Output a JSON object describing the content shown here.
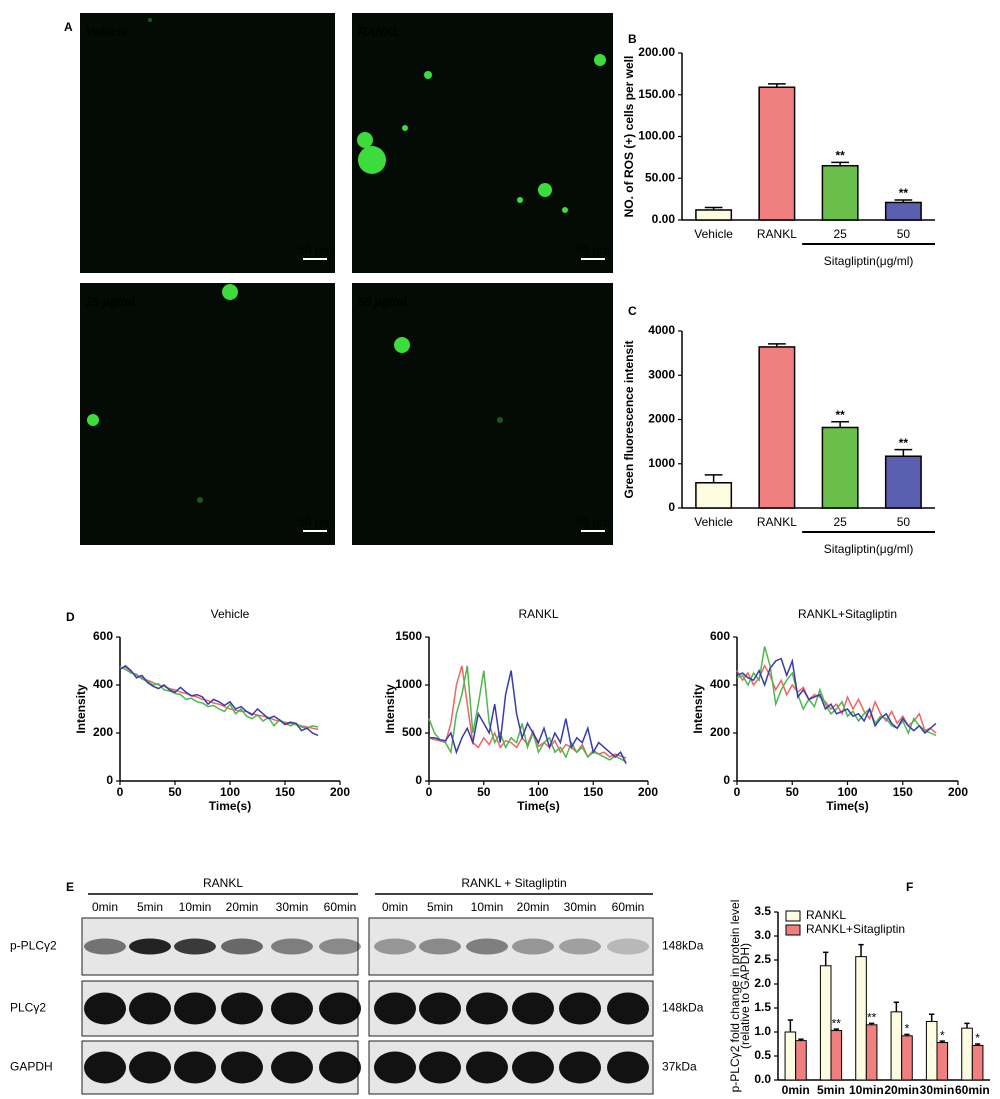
{
  "panel_a": {
    "panel": "A",
    "images": [
      {
        "label": "Vehicle",
        "scale_bar": "50 μm"
      },
      {
        "label": "RANKL",
        "scale_bar": "50 μm"
      },
      {
        "label": "25 μg/ml",
        "scale_bar": "50 μm"
      },
      {
        "label": "50 μg/ml",
        "scale_bar": "50 μm"
      }
    ]
  },
  "panel_e": {
    "panel": "E",
    "groups": [
      {
        "label": "RANKL",
        "times": [
          "0min",
          "5min",
          "10min",
          "20min",
          "30min",
          "60min"
        ]
      },
      {
        "label": "RANKL + Sitagliptin",
        "times": [
          "0min",
          "5min",
          "10min",
          "20min",
          "30min",
          "60min"
        ]
      }
    ],
    "rows": [
      {
        "label": "p-PLCγ2",
        "size": "148kDa"
      },
      {
        "label": "PLCγ2",
        "size": "148kDa"
      },
      {
        "label": "GAPDH",
        "size": "37kDa"
      }
    ]
  },
  "chart_data": [
    {
      "type": "bar",
      "panel": "B",
      "ylabel": "NO. of ROS (+) cells per well",
      "categories": [
        "Vehicle",
        "RANKL",
        "25",
        "50"
      ],
      "values": [
        12,
        159,
        65,
        21
      ],
      "errors": [
        3,
        4,
        4,
        3
      ],
      "significance": [
        null,
        null,
        "**",
        "**"
      ],
      "colors": [
        "#fdfbe0",
        "#f08080",
        "#6abf4b",
        "#5a5fb0"
      ],
      "group_label": "Sitagliptin(μg/ml)",
      "ylim": [
        0,
        200
      ],
      "yticks": [
        {
          "value": 0,
          "label": "0.00"
        },
        {
          "value": 50,
          "label": "50.00"
        },
        {
          "value": 100,
          "label": "100.00"
        },
        {
          "value": 150,
          "label": "150.00"
        },
        {
          "value": 200,
          "label": "200.00"
        }
      ]
    },
    {
      "type": "bar",
      "panel": "C",
      "ylabel": "Green fluorescence intensit",
      "categories": [
        "Vehicle",
        "RANKL",
        "25",
        "50"
      ],
      "values": [
        570,
        3640,
        1820,
        1170
      ],
      "errors": [
        180,
        70,
        130,
        150
      ],
      "significance": [
        null,
        null,
        "**",
        "**"
      ],
      "colors": [
        "#fdfbe0",
        "#f08080",
        "#6abf4b",
        "#5a5fb0"
      ],
      "group_label": "Sitagliptin(μg/ml)",
      "ylim": [
        0,
        4000
      ],
      "yticks": [
        0,
        1000,
        2000,
        3000,
        4000
      ]
    },
    {
      "type": "line",
      "panel": "D",
      "title": "Vehicle",
      "xlabel": "Time(s)",
      "ylabel": "Intensity",
      "x": [
        0,
        5,
        10,
        15,
        20,
        25,
        30,
        35,
        40,
        45,
        50,
        55,
        60,
        65,
        70,
        75,
        80,
        85,
        90,
        95,
        100,
        105,
        110,
        115,
        120,
        125,
        130,
        135,
        140,
        145,
        150,
        155,
        160,
        165,
        170,
        175,
        180
      ],
      "series": [
        {
          "color": "#f06464",
          "values": [
            470,
            475,
            455,
            440,
            430,
            420,
            410,
            400,
            395,
            385,
            380,
            370,
            365,
            355,
            350,
            340,
            335,
            325,
            320,
            310,
            300,
            295,
            290,
            290,
            280,
            275,
            270,
            265,
            255,
            250,
            245,
            240,
            235,
            230,
            225,
            220,
            215
          ]
        },
        {
          "color": "#4cb84c",
          "values": [
            475,
            465,
            450,
            445,
            425,
            415,
            400,
            405,
            380,
            375,
            365,
            360,
            340,
            345,
            330,
            325,
            310,
            315,
            300,
            290,
            320,
            280,
            300,
            270,
            260,
            275,
            250,
            265,
            230,
            255,
            240,
            230,
            240,
            225,
            220,
            230,
            225
          ]
        },
        {
          "color": "#3a3ab0",
          "values": [
            465,
            480,
            460,
            430,
            440,
            410,
            395,
            385,
            400,
            380,
            370,
            390,
            370,
            355,
            360,
            350,
            320,
            340,
            330,
            315,
            330,
            300,
            310,
            290,
            275,
            300,
            280,
            260,
            270,
            255,
            235,
            245,
            240,
            210,
            220,
            200,
            190
          ]
        }
      ],
      "xlim": [
        0,
        200
      ],
      "xticks": [
        0,
        50,
        100,
        150,
        200
      ],
      "ylim": [
        0,
        600
      ],
      "yticks": [
        0,
        200,
        400,
        600
      ]
    },
    {
      "type": "line",
      "title": "RANKL",
      "xlabel": "Time(s)",
      "ylabel": "Intensity",
      "x": [
        0,
        5,
        10,
        15,
        20,
        25,
        30,
        35,
        40,
        45,
        50,
        55,
        60,
        65,
        70,
        75,
        80,
        85,
        90,
        95,
        100,
        105,
        110,
        115,
        120,
        125,
        130,
        135,
        140,
        145,
        150,
        155,
        160,
        165,
        170,
        175,
        180
      ],
      "series": [
        {
          "color": "#f06464",
          "values": [
            450,
            430,
            420,
            400,
            600,
            1000,
            1200,
            800,
            400,
            350,
            450,
            380,
            500,
            350,
            420,
            400,
            350,
            450,
            380,
            520,
            360,
            400,
            350,
            420,
            300,
            380,
            350,
            300,
            380,
            250,
            320,
            280,
            300,
            250,
            280,
            260,
            240
          ]
        },
        {
          "color": "#4cb84c",
          "values": [
            650,
            500,
            430,
            400,
            300,
            700,
            900,
            1200,
            500,
            800,
            1150,
            600,
            400,
            500,
            350,
            450,
            400,
            600,
            350,
            500,
            300,
            400,
            450,
            300,
            350,
            250,
            400,
            300,
            350,
            250,
            300,
            280,
            250,
            220,
            260,
            230,
            200
          ]
        },
        {
          "color": "#3a3ab0",
          "values": [
            450,
            450,
            430,
            420,
            500,
            300,
            450,
            550,
            400,
            700,
            600,
            500,
            800,
            400,
            900,
            1150,
            700,
            450,
            600,
            500,
            400,
            550,
            350,
            500,
            400,
            650,
            350,
            450,
            400,
            550,
            300,
            400,
            350,
            300,
            250,
            300,
            180
          ]
        }
      ],
      "xlim": [
        0,
        200
      ],
      "xticks": [
        0,
        50,
        100,
        150,
        200
      ],
      "ylim": [
        0,
        1500
      ],
      "yticks": [
        0,
        500,
        1000,
        1500
      ]
    },
    {
      "type": "line",
      "title": "RANKL+Sitagliptin",
      "xlabel": "Time(s)",
      "ylabel": "Intensity",
      "x": [
        0,
        5,
        10,
        15,
        20,
        25,
        30,
        35,
        40,
        45,
        50,
        55,
        60,
        65,
        70,
        75,
        80,
        85,
        90,
        95,
        100,
        105,
        110,
        115,
        120,
        125,
        130,
        135,
        140,
        145,
        150,
        155,
        160,
        165,
        170,
        175,
        180
      ],
      "series": [
        {
          "color": "#f06464",
          "values": [
            460,
            420,
            450,
            400,
            430,
            480,
            440,
            380,
            420,
            360,
            400,
            370,
            390,
            340,
            360,
            350,
            330,
            300,
            320,
            280,
            350,
            300,
            340,
            290,
            260,
            330,
            280,
            250,
            290,
            240,
            270,
            230,
            250,
            280,
            210,
            220,
            200
          ]
        },
        {
          "color": "#4cb84c",
          "values": [
            430,
            440,
            400,
            450,
            420,
            560,
            480,
            320,
            380,
            420,
            450,
            360,
            300,
            340,
            310,
            380,
            320,
            280,
            300,
            330,
            270,
            290,
            250,
            280,
            300,
            240,
            270,
            260,
            230,
            220,
            250,
            200,
            260,
            230,
            210,
            200,
            190
          ]
        },
        {
          "color": "#3a3ab0",
          "values": [
            440,
            450,
            430,
            420,
            460,
            400,
            470,
            500,
            510,
            440,
            500,
            350,
            380,
            340,
            350,
            360,
            300,
            320,
            280,
            290,
            300,
            270,
            280,
            250,
            300,
            230,
            260,
            280,
            240,
            220,
            260,
            230,
            210,
            230,
            200,
            220,
            240
          ]
        }
      ],
      "xlim": [
        0,
        200
      ],
      "xticks": [
        0,
        50,
        100,
        150,
        200
      ],
      "ylim": [
        0,
        600
      ],
      "yticks": [
        0,
        200,
        400,
        600
      ]
    },
    {
      "type": "grouped_bar",
      "panel": "F",
      "ylabel": [
        "p-PLCγ2 fold change in protein level",
        "(relative to GAPDH)"
      ],
      "categories": [
        "0min",
        "5min",
        "10min",
        "20min",
        "30min",
        "60min"
      ],
      "series": [
        {
          "name": "RANKL",
          "color": "#fdfbe0",
          "values": [
            1.0,
            2.38,
            2.57,
            1.42,
            1.22,
            1.08
          ],
          "errors": [
            0.25,
            0.28,
            0.25,
            0.2,
            0.15,
            0.1
          ]
        },
        {
          "name": "RANKL+Sitagliptin",
          "color": "#f08080",
          "values": [
            0.82,
            1.03,
            1.15,
            0.92,
            0.78,
            0.72
          ],
          "errors": [
            0.03,
            0.03,
            0.03,
            0.03,
            0.03,
            0.03
          ],
          "significance": [
            null,
            "**",
            "**",
            "*",
            "*",
            "*"
          ]
        }
      ],
      "legend": "upper left",
      "ylim": [
        0,
        3.5
      ],
      "yticks": [
        {
          "value": 0,
          "label": "0.0"
        },
        0.5,
        {
          "value": 1,
          "label": "1.0"
        },
        1.5,
        {
          "value": 2,
          "label": "2.0"
        },
        2.5,
        {
          "value": 3,
          "label": "3.0"
        },
        3.5
      ]
    }
  ]
}
